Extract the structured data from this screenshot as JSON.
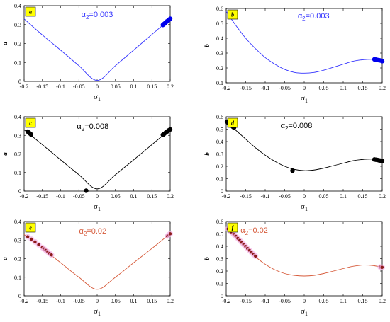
{
  "chart_data": [
    {
      "type": "line",
      "tag": "a",
      "annotation": "α2=0.003",
      "color": "#3333ff",
      "dot_color": "#0000ee",
      "xlabel": "σ1",
      "ylabel": "a",
      "xlim": [
        -0.2,
        0.2
      ],
      "ylim": [
        0,
        0.4
      ],
      "xticks": [
        "-0.2",
        "-0.15",
        "-0.1",
        "-0.05",
        "0",
        "0.05",
        "0.1",
        "0.15",
        "0.2"
      ],
      "yticks": [
        "0",
        "0.1",
        "0.2",
        "0.3",
        "0.4"
      ],
      "series": [
        {
          "x": [
            -0.2,
            -0.15,
            -0.1,
            -0.05,
            0,
            0.05,
            0.1,
            0.15,
            0.2
          ],
          "y": [
            0.33,
            0.245,
            0.165,
            0.083,
            0.005,
            0.083,
            0.165,
            0.248,
            0.33
          ]
        }
      ],
      "points": [
        [
          0.18,
          0.298
        ],
        [
          0.183,
          0.303
        ],
        [
          0.186,
          0.308
        ],
        [
          0.189,
          0.313
        ],
        [
          0.192,
          0.318
        ],
        [
          0.195,
          0.322
        ],
        [
          0.198,
          0.327
        ],
        [
          0.2,
          0.331
        ]
      ]
    },
    {
      "type": "line",
      "tag": "b",
      "annotation": "α2=0.003",
      "color": "#3333ff",
      "dot_color": "#0000ee",
      "xlabel": "σ1",
      "ylabel": "b",
      "xlim": [
        -0.2,
        0.2
      ],
      "ylim": [
        0.1,
        0.6
      ],
      "xticks": [
        "-0.2",
        "-0.15",
        "-0.1",
        "-0.05",
        "0",
        "0.05",
        "0.1",
        "0.15",
        "0.2"
      ],
      "yticks": [
        "0.1",
        "0.2",
        "0.3",
        "0.4",
        "0.5",
        "0.6"
      ],
      "series": [
        {
          "x": [
            -0.2,
            -0.175,
            -0.15,
            -0.125,
            -0.1,
            -0.075,
            -0.05,
            -0.025,
            0,
            0.025,
            0.05,
            0.075,
            0.1,
            0.125,
            0.15,
            0.175,
            0.2
          ],
          "y": [
            0.58,
            0.485,
            0.4,
            0.33,
            0.27,
            0.225,
            0.19,
            0.17,
            0.165,
            0.17,
            0.185,
            0.205,
            0.225,
            0.245,
            0.255,
            0.258,
            0.248
          ]
        }
      ],
      "points": [
        [
          0.18,
          0.258
        ],
        [
          0.184,
          0.256
        ],
        [
          0.188,
          0.254
        ],
        [
          0.192,
          0.252
        ],
        [
          0.196,
          0.25
        ],
        [
          0.2,
          0.246
        ]
      ]
    },
    {
      "type": "line",
      "tag": "c",
      "annotation": "α2=0.008",
      "color": "#000000",
      "dot_color": "#000000",
      "xlabel": "σ1",
      "ylabel": "a",
      "xlim": [
        -0.2,
        0.2
      ],
      "ylim": [
        0,
        0.4
      ],
      "xticks": [
        "-0.2",
        "-0.15",
        "-0.1",
        "-0.05",
        "0",
        "0.05",
        "0.1",
        "0.15",
        "0.2"
      ],
      "yticks": [
        "0",
        "0.1",
        "0.2",
        "0.3",
        "0.4"
      ],
      "series": [
        {
          "x": [
            -0.2,
            -0.15,
            -0.1,
            -0.05,
            0,
            0.05,
            0.1,
            0.15,
            0.2
          ],
          "y": [
            0.33,
            0.25,
            0.168,
            0.088,
            0.012,
            0.088,
            0.168,
            0.25,
            0.332
          ]
        }
      ],
      "points": [
        [
          -0.19,
          0.32
        ],
        [
          -0.187,
          0.315
        ],
        [
          -0.184,
          0.31
        ],
        [
          -0.181,
          0.305
        ],
        [
          -0.03,
          0.002
        ],
        [
          0.18,
          0.303
        ],
        [
          0.184,
          0.309
        ],
        [
          0.188,
          0.315
        ],
        [
          0.192,
          0.321
        ],
        [
          0.196,
          0.327
        ],
        [
          0.2,
          0.332
        ]
      ]
    },
    {
      "type": "line",
      "tag": "d",
      "annotation": "α2=0.008",
      "color": "#000000",
      "dot_color": "#000000",
      "xlabel": "σ1",
      "ylabel": "b",
      "xlim": [
        -0.2,
        0.2
      ],
      "ylim": [
        0,
        0.6
      ],
      "xticks": [
        "-0.2",
        "-0.15",
        "-0.1",
        "-0.05",
        "0",
        "0.05",
        "0.1",
        "0.15",
        "0.2"
      ],
      "yticks": [
        "0",
        "0.1",
        "0.2",
        "0.3",
        "0.4",
        "0.5",
        "0.6"
      ],
      "series": [
        {
          "x": [
            -0.2,
            -0.175,
            -0.15,
            -0.125,
            -0.1,
            -0.075,
            -0.05,
            -0.025,
            0,
            0.025,
            0.05,
            0.075,
            0.1,
            0.125,
            0.15,
            0.175,
            0.2
          ],
          "y": [
            0.56,
            0.49,
            0.42,
            0.35,
            0.29,
            0.24,
            0.2,
            0.175,
            0.165,
            0.17,
            0.185,
            0.205,
            0.225,
            0.245,
            0.255,
            0.258,
            0.245
          ]
        }
      ],
      "points": [
        [
          -0.198,
          0.56
        ],
        [
          -0.195,
          0.552
        ],
        [
          -0.186,
          0.53
        ],
        [
          -0.183,
          0.52
        ],
        [
          -0.18,
          0.512
        ],
        [
          -0.03,
          0.165
        ],
        [
          0.18,
          0.255
        ],
        [
          0.184,
          0.253
        ],
        [
          0.188,
          0.251
        ],
        [
          0.192,
          0.248
        ],
        [
          0.196,
          0.246
        ],
        [
          0.2,
          0.244
        ]
      ]
    },
    {
      "type": "line",
      "tag": "e",
      "annotation": "α2=0.02",
      "color": "#d65a3a",
      "dot_color": "#8b1a1a",
      "halo_color": "#f5b8e8",
      "xlabel": "σ1",
      "ylabel": "a",
      "xlim": [
        -0.2,
        0.2
      ],
      "ylim": [
        0,
        0.4
      ],
      "xticks": [
        "-0.2",
        "-0.15",
        "-0.1",
        "-0.05",
        "0",
        "0.05",
        "0.1",
        "0.15",
        "0.2"
      ],
      "yticks": [
        "0",
        "0.1",
        "0.2",
        "0.3",
        "0.4"
      ],
      "series": [
        {
          "x": [
            -0.2,
            -0.15,
            -0.1,
            -0.05,
            0,
            0.05,
            0.1,
            0.15,
            0.2
          ],
          "y": [
            0.33,
            0.255,
            0.178,
            0.1,
            0.035,
            0.1,
            0.178,
            0.255,
            0.335
          ]
        }
      ],
      "points": [
        [
          -0.19,
          0.318
        ],
        [
          -0.18,
          0.305
        ],
        [
          -0.17,
          0.29
        ],
        [
          -0.16,
          0.275
        ],
        [
          -0.15,
          0.26
        ],
        [
          -0.145,
          0.252
        ],
        [
          -0.14,
          0.244
        ],
        [
          -0.135,
          0.236
        ],
        [
          -0.13,
          0.228
        ],
        [
          -0.125,
          0.22
        ],
        [
          0.192,
          0.322
        ],
        [
          0.196,
          0.328
        ],
        [
          0.2,
          0.334
        ]
      ]
    },
    {
      "type": "line",
      "tag": "f",
      "annotation": "α2=0.02",
      "color": "#d65a3a",
      "dot_color": "#8b1a1a",
      "halo_color": "#f5b8e8",
      "xlabel": "σ1",
      "ylabel": "b",
      "xlim": [
        -0.2,
        0.2
      ],
      "ylim": [
        0,
        0.6
      ],
      "xticks": [
        "-0.2",
        "-0.15",
        "-0.1",
        "-0.05",
        "0",
        "0.05",
        "0.1",
        "0.15",
        "0.2"
      ],
      "yticks": [
        "0",
        "0.1",
        "0.2",
        "0.3",
        "0.4",
        "0.5",
        "0.6"
      ],
      "series": [
        {
          "x": [
            -0.2,
            -0.175,
            -0.15,
            -0.125,
            -0.1,
            -0.075,
            -0.05,
            -0.025,
            0,
            0.025,
            0.05,
            0.075,
            0.1,
            0.125,
            0.15,
            0.175,
            0.2
          ],
          "y": [
            0.55,
            0.47,
            0.39,
            0.315,
            0.255,
            0.21,
            0.18,
            0.165,
            0.16,
            0.165,
            0.18,
            0.2,
            0.22,
            0.238,
            0.248,
            0.245,
            0.23
          ]
        }
      ],
      "points": [
        [
          -0.195,
          0.54
        ],
        [
          -0.19,
          0.525
        ],
        [
          -0.185,
          0.51
        ],
        [
          -0.18,
          0.495
        ],
        [
          -0.175,
          0.48
        ],
        [
          -0.17,
          0.463
        ],
        [
          -0.165,
          0.447
        ],
        [
          -0.16,
          0.43
        ],
        [
          -0.155,
          0.414
        ],
        [
          -0.15,
          0.398
        ],
        [
          -0.145,
          0.382
        ],
        [
          -0.14,
          0.366
        ],
        [
          -0.135,
          0.35
        ],
        [
          -0.13,
          0.335
        ],
        [
          -0.125,
          0.32
        ],
        [
          0.195,
          0.232
        ],
        [
          0.2,
          0.23
        ]
      ]
    }
  ]
}
